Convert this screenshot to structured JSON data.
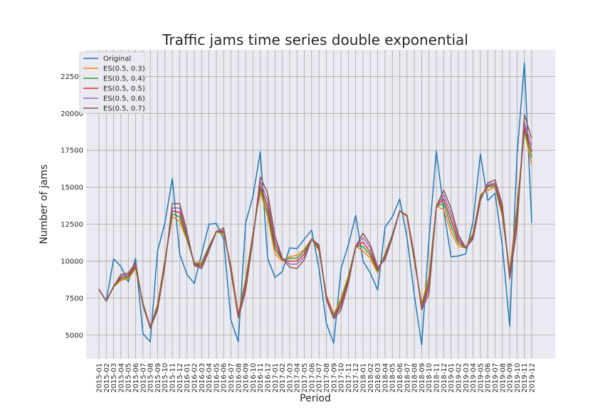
{
  "chart_data": {
    "type": "line",
    "title": "Traffic jams time series double exponential",
    "xlabel": "Period",
    "ylabel": "Number of jams",
    "ylim": [
      3400,
      24300
    ],
    "yticks": [
      5000,
      7500,
      10000,
      12500,
      15000,
      17500,
      20000,
      22500
    ],
    "ytick_labels": [
      "5000",
      "7500",
      "10000",
      "12500",
      "15000",
      "17500",
      "20000",
      "22500"
    ],
    "grid": true,
    "legend_placement": "top-left",
    "categories": [
      "2015-01",
      "2015-02",
      "2015-03",
      "2015-04",
      "2015-05",
      "2015-06",
      "2015-07",
      "2015-08",
      "2015-09",
      "2015-10",
      "2015-11",
      "2015-12",
      "2016-01",
      "2016-02",
      "2016-03",
      "2016-04",
      "2016-05",
      "2016-06",
      "2016-07",
      "2016-08",
      "2016-09",
      "2016-10",
      "2016-11",
      "2016-12",
      "2017-01",
      "2017-02",
      "2017-03",
      "2017-04",
      "2017-05",
      "2017-06",
      "2017-07",
      "2017-08",
      "2017-09",
      "2017-10",
      "2017-11",
      "2017-12",
      "2018-01",
      "2018-02",
      "2018-03",
      "2018-04",
      "2018-05",
      "2018-06",
      "2018-07",
      "2018-08",
      "2018-09",
      "2018-10",
      "2018-11",
      "2018-12",
      "2019-01",
      "2019-02",
      "2019-03",
      "2019-04",
      "2019-05",
      "2019-06",
      "2019-07",
      "2019-08",
      "2019-09",
      "2019-10",
      "2019-11",
      "2019-12"
    ],
    "series": [
      {
        "name": "Original",
        "color": "#1f77b4",
        "values": [
          8100,
          7300,
          10150,
          9650,
          8600,
          10200,
          5100,
          4550,
          10700,
          12600,
          15600,
          10500,
          9100,
          8500,
          10500,
          12500,
          12550,
          11500,
          6000,
          4550,
          12600,
          14400,
          17400,
          10200,
          8900,
          9300,
          10900,
          10850,
          11500,
          12100,
          9500,
          5800,
          4450,
          9500,
          11100,
          13100,
          10000,
          9200,
          8050,
          12300,
          13000,
          14200,
          11600,
          7700,
          4350,
          11500,
          17450,
          13500,
          10300,
          10350,
          10500,
          12700,
          17250,
          14100,
          14600,
          11000,
          5600,
          17200,
          23400,
          12600
        ]
      },
      {
        "name": "ES(0.5, 0.3)",
        "color": "#ff7f0e",
        "values": [
          8100,
          7300,
          8250,
          8700,
          8800,
          9500,
          7200,
          5500,
          7100,
          10100,
          13000,
          12700,
          11400,
          9900,
          9900,
          11000,
          12000,
          11800,
          9700,
          6400,
          8800,
          11900,
          14700,
          13000,
          10500,
          10000,
          10300,
          10400,
          10800,
          11500,
          10700,
          7700,
          6400,
          7500,
          9000,
          11000,
          10700,
          10200,
          9200,
          10500,
          11800,
          13400,
          13000,
          10000,
          7100,
          9000,
          13700,
          13500,
          12000,
          11000,
          10900,
          11900,
          14500,
          14800,
          15000,
          13000,
          9300,
          13800,
          18800,
          16500
        ]
      },
      {
        "name": "ES(0.5, 0.4)",
        "color": "#2ca02c",
        "values": [
          8100,
          7300,
          8300,
          8800,
          8900,
          9600,
          7150,
          5550,
          7000,
          10000,
          13200,
          13000,
          11500,
          9850,
          9800,
          11000,
          12000,
          11900,
          9600,
          6300,
          8600,
          11800,
          14900,
          13300,
          10800,
          10100,
          10200,
          10200,
          10700,
          11500,
          10800,
          7600,
          6300,
          7300,
          8900,
          11000,
          11000,
          10400,
          9300,
          10400,
          11800,
          13400,
          13100,
          10100,
          7000,
          8700,
          13700,
          13900,
          12400,
          11200,
          10900,
          11800,
          14400,
          15000,
          15100,
          13200,
          9100,
          13400,
          18900,
          17000
        ]
      },
      {
        "name": "ES(0.5, 0.5)",
        "color": "#d62728",
        "values": [
          8100,
          7300,
          8300,
          8900,
          9000,
          9700,
          7100,
          5550,
          6900,
          9900,
          13400,
          13300,
          11700,
          9800,
          9700,
          10900,
          12000,
          12000,
          9500,
          6300,
          8400,
          11700,
          15100,
          13700,
          11100,
          10100,
          10000,
          10000,
          10500,
          11500,
          10900,
          7600,
          6200,
          7100,
          8700,
          11000,
          11300,
          10600,
          9400,
          10300,
          11700,
          13400,
          13100,
          10200,
          6900,
          8400,
          13700,
          14200,
          12800,
          11400,
          10900,
          11700,
          14300,
          15100,
          15200,
          13400,
          9000,
          13000,
          19100,
          17400
        ]
      },
      {
        "name": "ES(0.5, 0.6)",
        "color": "#9467bd",
        "values": [
          8100,
          7300,
          8300,
          9000,
          9100,
          9800,
          7050,
          5500,
          6800,
          9800,
          13600,
          13600,
          11800,
          9750,
          9600,
          10800,
          12000,
          12100,
          9400,
          6200,
          8200,
          11600,
          15400,
          14100,
          11400,
          10200,
          9800,
          9800,
          10300,
          11500,
          11000,
          7500,
          6200,
          6900,
          8600,
          11000,
          11600,
          10900,
          9500,
          10200,
          11700,
          13400,
          13100,
          10300,
          6800,
          8100,
          13700,
          14500,
          13200,
          11600,
          10900,
          11600,
          14200,
          15200,
          15300,
          13600,
          8900,
          12700,
          19400,
          17800
        ]
      },
      {
        "name": "ES(0.5, 0.7)",
        "color": "#8c564b",
        "values": [
          8100,
          7300,
          8300,
          9100,
          9200,
          9900,
          7000,
          5450,
          6700,
          9700,
          13900,
          13900,
          12000,
          9700,
          9500,
          10700,
          12000,
          12250,
          9300,
          6150,
          8000,
          11500,
          15700,
          14600,
          11700,
          10200,
          9600,
          9500,
          10100,
          11500,
          11100,
          7400,
          6100,
          6700,
          8500,
          11000,
          11900,
          11100,
          9600,
          10100,
          11600,
          13400,
          13100,
          10400,
          6700,
          7800,
          13700,
          14800,
          13600,
          11800,
          10900,
          11500,
          14100,
          15300,
          15500,
          13800,
          8800,
          12300,
          19900,
          18300
        ]
      }
    ]
  }
}
